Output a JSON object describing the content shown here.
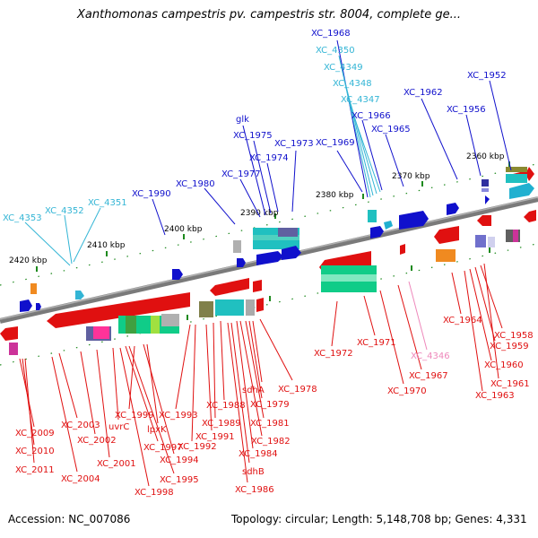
{
  "title": "Xanthomonas campestris pv. campestris str. 8004, complete ge...",
  "accession": "Accession: NC_007086",
  "topology": "Topology: circular; Length: 5,148,708 bp; Genes: 4,331",
  "colors": {
    "forward": "#1010cc",
    "forward_light": "#33b5d5",
    "reverse": "#e01010",
    "reverse_light": "#ee88bb"
  },
  "ticks": [
    {
      "label": "2360 kbp"
    },
    {
      "label": "2370 kbp"
    },
    {
      "label": "2380 kbp"
    },
    {
      "label": "2390 kbp"
    },
    {
      "label": "2400 kbp"
    },
    {
      "label": "2410 kbp"
    },
    {
      "label": "2420 kbp"
    }
  ],
  "top_labels": [
    {
      "text": "XC_1968",
      "color": "#1010cc"
    },
    {
      "text": "XC_4350",
      "color": "#33b5d5"
    },
    {
      "text": "XC_4349",
      "color": "#33b5d5"
    },
    {
      "text": "XC_4348",
      "color": "#33b5d5"
    },
    {
      "text": "XC_4347",
      "color": "#33b5d5"
    },
    {
      "text": "XC_1966",
      "color": "#1010cc"
    },
    {
      "text": "XC_1965",
      "color": "#1010cc"
    },
    {
      "text": "XC_1969",
      "color": "#1010cc"
    },
    {
      "text": "XC_1962",
      "color": "#1010cc"
    },
    {
      "text": "XC_1956",
      "color": "#1010cc"
    },
    {
      "text": "XC_1952",
      "color": "#1010cc"
    },
    {
      "text": "glk",
      "color": "#1010cc"
    },
    {
      "text": "XC_1975",
      "color": "#1010cc"
    },
    {
      "text": "XC_1973",
      "color": "#1010cc"
    },
    {
      "text": "XC_1974",
      "color": "#1010cc"
    },
    {
      "text": "XC_1977",
      "color": "#1010cc"
    },
    {
      "text": "XC_1980",
      "color": "#1010cc"
    },
    {
      "text": "XC_1990",
      "color": "#1010cc"
    },
    {
      "text": "XC_4351",
      "color": "#33b5d5"
    },
    {
      "text": "XC_4352",
      "color": "#33b5d5"
    },
    {
      "text": "XC_4353",
      "color": "#33b5d5"
    }
  ],
  "bottom_labels": [
    {
      "text": "XC_1972",
      "color": "#e01010"
    },
    {
      "text": "XC_1971",
      "color": "#e01010"
    },
    {
      "text": "XC_4346",
      "color": "#ee88bb"
    },
    {
      "text": "XC_1967",
      "color": "#e01010"
    },
    {
      "text": "XC_1970",
      "color": "#e01010"
    },
    {
      "text": "XC_1964",
      "color": "#e01010"
    },
    {
      "text": "XC_1958",
      "color": "#e01010"
    },
    {
      "text": "XC_1959",
      "color": "#e01010"
    },
    {
      "text": "XC_1960",
      "color": "#e01010"
    },
    {
      "text": "XC_1961",
      "color": "#e01010"
    },
    {
      "text": "XC_1963",
      "color": "#e01010"
    },
    {
      "text": "XC_1978",
      "color": "#e01010"
    },
    {
      "text": "sdhA",
      "color": "#e01010"
    },
    {
      "text": "XC_1979",
      "color": "#e01010"
    },
    {
      "text": "XC_1988",
      "color": "#e01010"
    },
    {
      "text": "XC_1981",
      "color": "#e01010"
    },
    {
      "text": "XC_1989",
      "color": "#e01010"
    },
    {
      "text": "XC_1991",
      "color": "#e01010"
    },
    {
      "text": "XC_1982",
      "color": "#e01010"
    },
    {
      "text": "XC_1993",
      "color": "#e01010"
    },
    {
      "text": "XC_1992",
      "color": "#e01010"
    },
    {
      "text": "XC_1984",
      "color": "#e01010"
    },
    {
      "text": "sdhB",
      "color": "#e01010"
    },
    {
      "text": "XC_1986",
      "color": "#e01010"
    },
    {
      "text": "XC_1999",
      "color": "#e01010"
    },
    {
      "text": "uvrC",
      "color": "#e01010"
    },
    {
      "text": "lpxK",
      "color": "#e01010"
    },
    {
      "text": "XC_1997",
      "color": "#e01010"
    },
    {
      "text": "XC_1994",
      "color": "#e01010"
    },
    {
      "text": "XC_1995",
      "color": "#e01010"
    },
    {
      "text": "XC_1998",
      "color": "#e01010"
    },
    {
      "text": "XC_2003",
      "color": "#e01010"
    },
    {
      "text": "XC_2002",
      "color": "#e01010"
    },
    {
      "text": "XC_2001",
      "color": "#e01010"
    },
    {
      "text": "XC_2004",
      "color": "#e01010"
    },
    {
      "text": "XC_2009",
      "color": "#e01010"
    },
    {
      "text": "XC_2010",
      "color": "#e01010"
    },
    {
      "text": "XC_2011",
      "color": "#e01010"
    }
  ]
}
